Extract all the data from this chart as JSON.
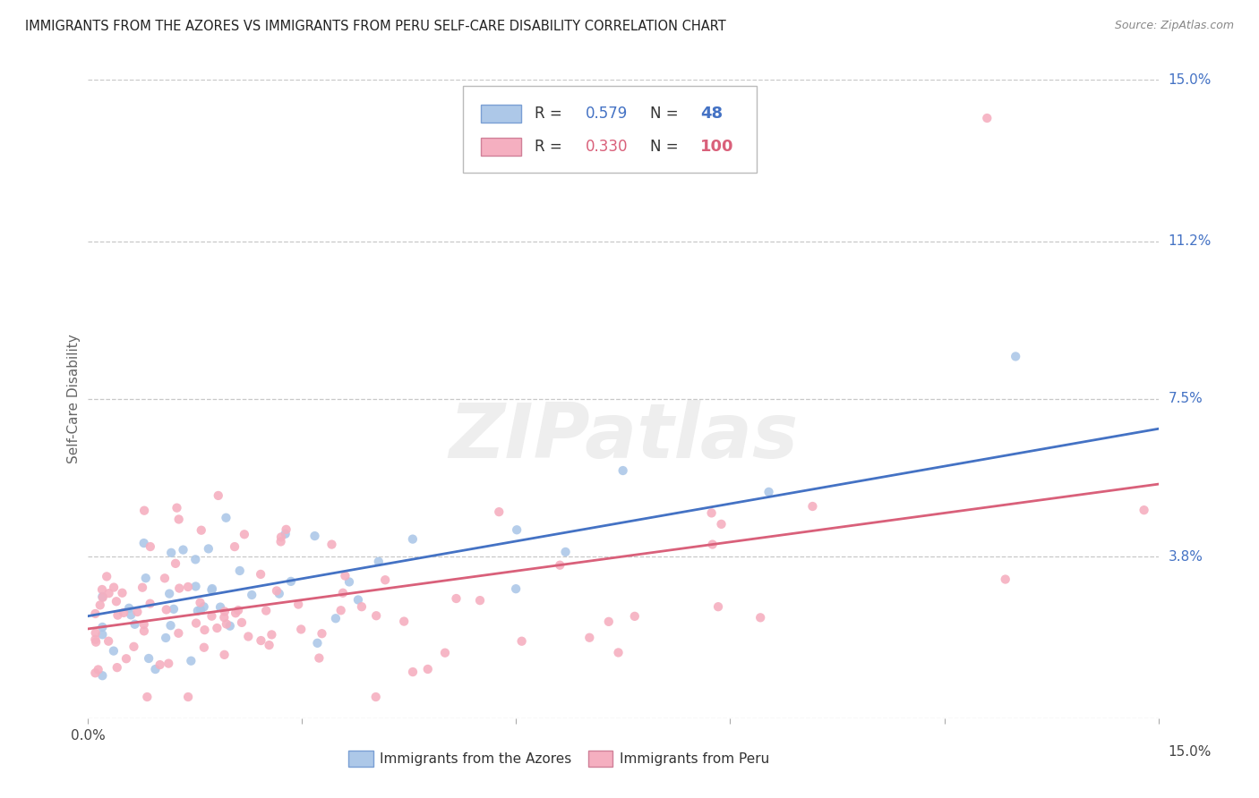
{
  "title": "IMMIGRANTS FROM THE AZORES VS IMMIGRANTS FROM PERU SELF-CARE DISABILITY CORRELATION CHART",
  "source": "Source: ZipAtlas.com",
  "ylabel": "Self-Care Disability",
  "legend_bottom_left": "Immigrants from the Azores",
  "legend_bottom_right": "Immigrants from Peru",
  "xmin": 0.0,
  "xmax": 0.15,
  "ymin": 0.0,
  "ymax": 0.15,
  "yticks": [
    0.0,
    0.038,
    0.075,
    0.112,
    0.15
  ],
  "ytick_labels": [
    "",
    "3.8%",
    "7.5%",
    "11.2%",
    "15.0%"
  ],
  "azores_color": "#adc8e8",
  "peru_color": "#f5afc0",
  "azores_line_color": "#4472c4",
  "peru_line_color": "#d9607a",
  "azores_R": 0.579,
  "azores_N": 48,
  "peru_R": 0.33,
  "peru_N": 100,
  "azores_line_start_x": 0.0,
  "azores_line_start_y": 0.024,
  "azores_line_end_x": 0.15,
  "azores_line_end_y": 0.068,
  "peru_line_start_x": 0.0,
  "peru_line_start_y": 0.021,
  "peru_line_end_x": 0.15,
  "peru_line_end_y": 0.055,
  "watermark": "ZIPatlas"
}
